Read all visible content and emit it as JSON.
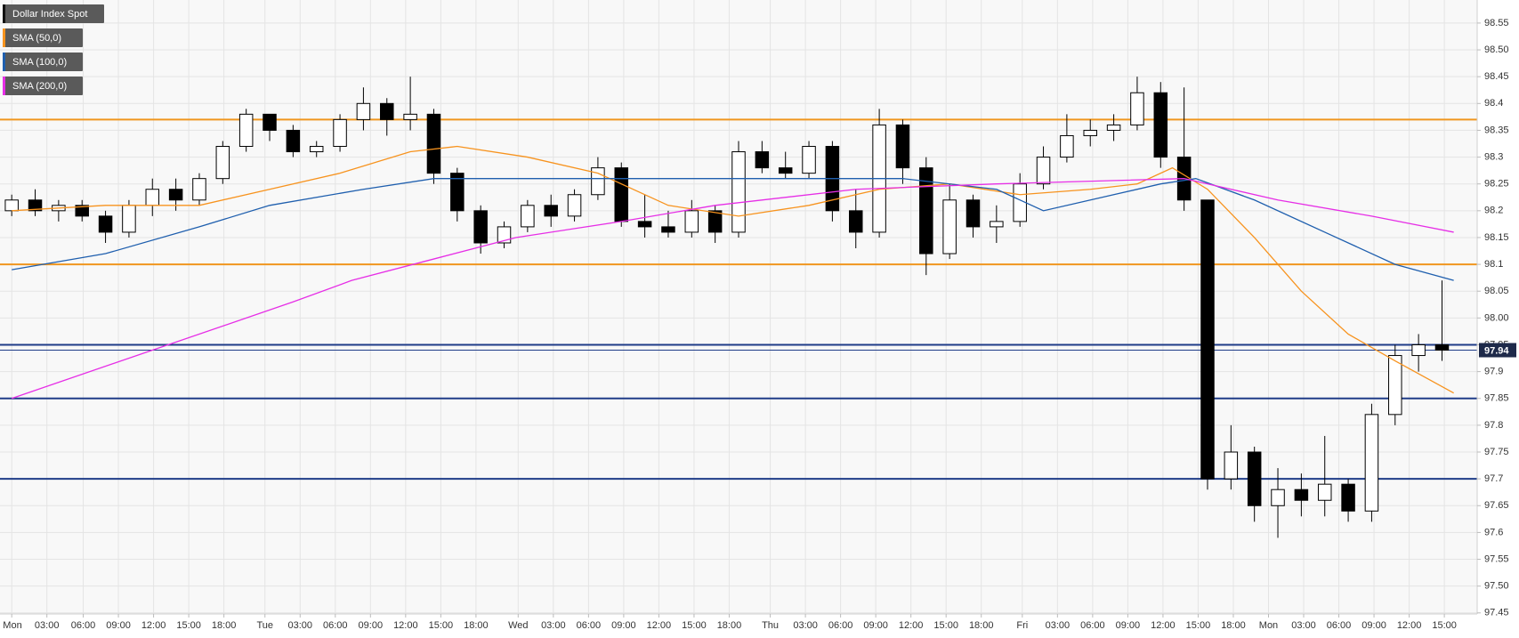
{
  "chart_data": {
    "type": "candlestick",
    "series": [
      {
        "name": "Dollar Index Spot",
        "color": "#000000",
        "x": [
          0,
          2,
          4,
          6,
          8,
          10,
          12,
          14,
          16,
          18,
          20,
          22,
          24,
          26,
          28,
          30,
          32,
          34,
          36,
          38,
          40,
          42,
          44,
          46,
          48,
          50,
          52,
          54,
          56,
          58,
          60,
          62,
          64,
          66,
          68,
          70,
          72,
          74,
          76,
          78,
          80,
          82,
          84,
          86,
          88,
          90,
          92,
          94,
          96,
          98,
          100,
          102,
          104,
          106,
          108,
          110,
          112,
          114,
          116,
          118,
          120,
          122
        ],
        "open": [
          98.2,
          98.22,
          98.2,
          98.21,
          98.19,
          98.16,
          98.21,
          98.24,
          98.22,
          98.26,
          98.32,
          98.38,
          98.35,
          98.31,
          98.32,
          98.37,
          98.4,
          98.37,
          98.38,
          98.27,
          98.2,
          98.14,
          98.17,
          98.21,
          98.19,
          98.23,
          98.28,
          98.18,
          98.17,
          98.16,
          98.2,
          98.16,
          98.31,
          98.28,
          98.27,
          98.32,
          98.2,
          98.16,
          98.36,
          98.28,
          98.12,
          98.22,
          98.17,
          98.18,
          98.25,
          98.3,
          98.34,
          98.35,
          98.36,
          98.42,
          98.3,
          98.22,
          97.7,
          97.75,
          97.65,
          97.68,
          97.66,
          97.69,
          97.64,
          97.82,
          97.93,
          97.95
        ],
        "high": [
          98.23,
          98.24,
          98.22,
          98.22,
          98.2,
          98.22,
          98.26,
          98.26,
          98.27,
          98.33,
          98.39,
          98.38,
          98.36,
          98.33,
          98.38,
          98.43,
          98.41,
          98.45,
          98.39,
          98.28,
          98.21,
          98.18,
          98.22,
          98.23,
          98.24,
          98.3,
          98.29,
          98.23,
          98.2,
          98.22,
          98.21,
          98.33,
          98.33,
          98.31,
          98.33,
          98.33,
          98.24,
          98.39,
          98.37,
          98.3,
          98.25,
          98.23,
          98.21,
          98.27,
          98.32,
          98.38,
          98.37,
          98.38,
          98.45,
          98.44,
          98.43,
          98.22,
          97.8,
          97.76,
          97.72,
          97.71,
          97.78,
          97.7,
          97.84,
          97.95,
          97.97,
          98.07
        ],
        "low": [
          98.19,
          98.19,
          98.18,
          98.18,
          98.14,
          98.15,
          98.19,
          98.2,
          98.21,
          98.25,
          98.31,
          98.33,
          98.3,
          98.3,
          98.31,
          98.35,
          98.34,
          98.35,
          98.25,
          98.18,
          98.12,
          98.13,
          98.16,
          98.17,
          98.18,
          98.22,
          98.17,
          98.15,
          98.15,
          98.15,
          98.14,
          98.15,
          98.27,
          98.26,
          98.26,
          98.18,
          98.13,
          98.15,
          98.25,
          98.08,
          98.11,
          98.15,
          98.14,
          98.17,
          98.24,
          98.29,
          98.32,
          98.33,
          98.35,
          98.28,
          98.2,
          97.68,
          97.68,
          97.62,
          97.59,
          97.63,
          97.63,
          97.62,
          97.62,
          97.8,
          97.9,
          97.92
        ],
        "close": [
          98.22,
          98.2,
          98.21,
          98.19,
          98.16,
          98.21,
          98.24,
          98.22,
          98.26,
          98.32,
          98.38,
          98.35,
          98.31,
          98.32,
          98.37,
          98.4,
          98.37,
          98.38,
          98.27,
          98.2,
          98.14,
          98.17,
          98.21,
          98.19,
          98.23,
          98.28,
          98.18,
          98.17,
          98.16,
          98.2,
          98.16,
          98.31,
          98.28,
          98.27,
          98.32,
          98.2,
          98.16,
          98.36,
          98.28,
          98.12,
          98.22,
          98.17,
          98.18,
          98.25,
          98.3,
          98.34,
          98.35,
          98.36,
          98.42,
          98.3,
          98.22,
          97.7,
          97.75,
          97.65,
          97.68,
          97.66,
          97.69,
          97.64,
          97.82,
          97.93,
          97.95,
          97.94
        ]
      },
      {
        "name": "SMA (50,0)",
        "color": "#f7931e",
        "type": "line",
        "x": [
          0,
          8,
          16,
          22,
          28,
          34,
          38,
          44,
          50,
          56,
          62,
          68,
          74,
          80,
          86,
          92,
          96,
          99,
          102,
          106,
          110,
          114,
          118,
          123
        ],
        "values": [
          98.2,
          98.21,
          98.21,
          98.24,
          98.27,
          98.31,
          98.32,
          98.3,
          98.27,
          98.21,
          98.19,
          98.21,
          98.24,
          98.25,
          98.23,
          98.24,
          98.25,
          98.28,
          98.24,
          98.15,
          98.05,
          97.97,
          97.92,
          97.86
        ]
      },
      {
        "name": "SMA (100,0)",
        "color": "#1f5fae",
        "type": "line",
        "x": [
          0,
          8,
          16,
          22,
          30,
          36,
          44,
          52,
          60,
          68,
          76,
          84,
          88,
          94,
          98,
          101,
          106,
          112,
          118,
          123
        ],
        "values": [
          98.09,
          98.12,
          98.17,
          98.21,
          98.24,
          98.26,
          98.26,
          98.26,
          98.26,
          98.26,
          98.26,
          98.24,
          98.2,
          98.23,
          98.25,
          98.26,
          98.22,
          98.16,
          98.1,
          98.07
        ]
      },
      {
        "name": "SMA (200,0)",
        "color": "#e62ee6",
        "type": "line",
        "x": [
          0,
          12,
          24,
          29,
          36,
          43,
          52,
          60,
          72,
          84,
          100,
          108,
          116,
          123
        ],
        "values": [
          97.85,
          97.94,
          98.03,
          98.07,
          98.11,
          98.15,
          98.18,
          98.21,
          98.24,
          98.25,
          98.26,
          98.22,
          98.19,
          98.16
        ]
      }
    ],
    "levels": [
      {
        "value": 98.37,
        "color": "#f0961e"
      },
      {
        "value": 98.1,
        "color": "#f0961e"
      },
      {
        "value": 97.95,
        "color": "#1f3c88"
      },
      {
        "value": 97.85,
        "color": "#1f3c88"
      },
      {
        "value": 97.7,
        "color": "#1f3c88"
      }
    ],
    "last_price": 97.94,
    "xlim": [
      -1,
      125
    ],
    "xticks": [
      {
        "value": 0,
        "label": "Mon"
      },
      {
        "value": 3,
        "label": "03:00"
      },
      {
        "value": 6.1,
        "label": "06:00"
      },
      {
        "value": 9.1,
        "label": "09:00"
      },
      {
        "value": 12.1,
        "label": "12:00"
      },
      {
        "value": 15.1,
        "label": "15:00"
      },
      {
        "value": 18.1,
        "label": "18:00"
      },
      {
        "value": 21.6,
        "label": "Tue"
      },
      {
        "value": 24.6,
        "label": "03:00"
      },
      {
        "value": 27.6,
        "label": "06:00"
      },
      {
        "value": 30.6,
        "label": "09:00"
      },
      {
        "value": 33.6,
        "label": "12:00"
      },
      {
        "value": 36.6,
        "label": "15:00"
      },
      {
        "value": 39.6,
        "label": "18:00"
      },
      {
        "value": 43.2,
        "label": "Wed"
      },
      {
        "value": 46.2,
        "label": "03:00"
      },
      {
        "value": 49.2,
        "label": "06:00"
      },
      {
        "value": 52.2,
        "label": "09:00"
      },
      {
        "value": 55.2,
        "label": "12:00"
      },
      {
        "value": 58.2,
        "label": "15:00"
      },
      {
        "value": 61.2,
        "label": "18:00"
      },
      {
        "value": 64.7,
        "label": "Thu"
      },
      {
        "value": 67.7,
        "label": "03:00"
      },
      {
        "value": 70.7,
        "label": "06:00"
      },
      {
        "value": 73.7,
        "label": "09:00"
      },
      {
        "value": 76.7,
        "label": "12:00"
      },
      {
        "value": 79.7,
        "label": "15:00"
      },
      {
        "value": 82.7,
        "label": "18:00"
      },
      {
        "value": 86.2,
        "label": "Fri"
      },
      {
        "value": 89.2,
        "label": "03:00"
      },
      {
        "value": 92.2,
        "label": "06:00"
      },
      {
        "value": 95.2,
        "label": "09:00"
      },
      {
        "value": 98.2,
        "label": "12:00"
      },
      {
        "value": 101.2,
        "label": "15:00"
      },
      {
        "value": 104.2,
        "label": "18:00"
      },
      {
        "value": 107.2,
        "label": "Mon"
      },
      {
        "value": 110.2,
        "label": "03:00"
      },
      {
        "value": 113.2,
        "label": "06:00"
      },
      {
        "value": 116.2,
        "label": "09:00"
      },
      {
        "value": 119.2,
        "label": "12:00"
      },
      {
        "value": 122.2,
        "label": "15:00"
      }
    ],
    "ylim": [
      97.448,
      98.593
    ],
    "yticks": [
      97.45,
      {
        "value": 97.5,
        "label": "97.50"
      },
      97.55,
      97.6,
      97.65,
      97.7,
      97.75,
      97.8,
      97.85,
      97.9,
      97.95,
      {
        "value": 98,
        "label": "98.00"
      },
      98.05,
      98.1,
      98.15,
      98.2,
      98.25,
      98.3,
      98.35,
      98.4,
      98.45,
      {
        "value": 98.5,
        "label": "98.50"
      },
      98.55
    ],
    "grid": true
  }
}
